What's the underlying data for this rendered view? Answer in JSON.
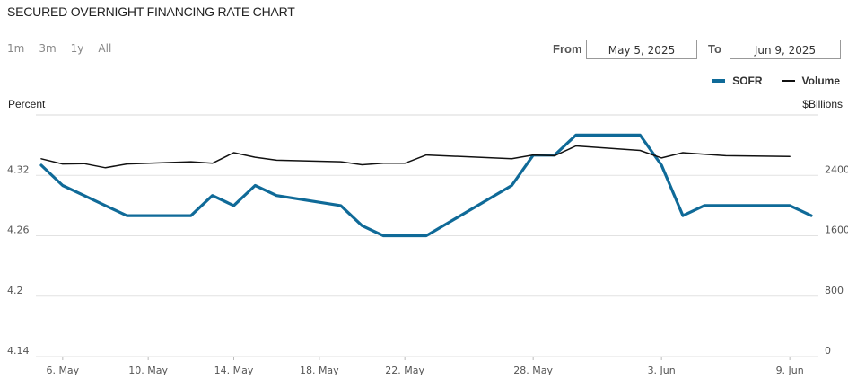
{
  "header": {
    "title": "SECURED OVERNIGHT FINANCING RATE CHART"
  },
  "range_buttons": [
    "1m",
    "3m",
    "1y",
    "All"
  ],
  "date_range": {
    "from_label": "From",
    "from_value": "May 5, 2025",
    "to_label": "To",
    "to_value": "Jun 9, 2025"
  },
  "legend": [
    {
      "name": "SOFR",
      "color": "#0f6a98",
      "icon": "thick-line-swatch"
    },
    {
      "name": "Volume",
      "color": "#111111",
      "icon": "thin-line-swatch"
    }
  ],
  "chart_data": {
    "type": "line",
    "left_axis_title": "Percent",
    "right_axis_title": "$Billions",
    "left_ticks": [
      "4.32",
      "4.26",
      "4.2",
      "4.14"
    ],
    "left_tick_values": [
      4.32,
      4.26,
      4.2,
      4.14
    ],
    "right_ticks": [
      "2400",
      "1600",
      "800",
      "0"
    ],
    "right_tick_values": [
      2400,
      1600,
      800,
      0
    ],
    "ylim_left": [
      4.14,
      4.38
    ],
    "ylim_right": [
      0,
      3200
    ],
    "x_tick_labels": [
      "6. May",
      "10. May",
      "14. May",
      "18. May",
      "22. May",
      "28. May",
      "3. Jun",
      "9. Jun"
    ],
    "x_tick_dates": [
      "2025-05-06",
      "2025-05-10",
      "2025-05-14",
      "2025-05-18",
      "2025-05-22",
      "2025-05-28",
      "2025-06-03",
      "2025-06-09"
    ],
    "xlim": [
      "2025-05-05",
      "2025-06-10"
    ],
    "grid": true,
    "series": [
      {
        "name": "SOFR",
        "axis": "left",
        "color": "#0f6a98",
        "points": [
          [
            "2025-05-05",
            4.33
          ],
          [
            "2025-05-06",
            4.31
          ],
          [
            "2025-05-07",
            4.3
          ],
          [
            "2025-05-08",
            4.29
          ],
          [
            "2025-05-09",
            4.28
          ],
          [
            "2025-05-12",
            4.28
          ],
          [
            "2025-05-13",
            4.3
          ],
          [
            "2025-05-14",
            4.29
          ],
          [
            "2025-05-15",
            4.31
          ],
          [
            "2025-05-16",
            4.3
          ],
          [
            "2025-05-19",
            4.29
          ],
          [
            "2025-05-20",
            4.27
          ],
          [
            "2025-05-21",
            4.26
          ],
          [
            "2025-05-22",
            4.26
          ],
          [
            "2025-05-23",
            4.26
          ],
          [
            "2025-05-27",
            4.31
          ],
          [
            "2025-05-28",
            4.34
          ],
          [
            "2025-05-29",
            4.34
          ],
          [
            "2025-05-30",
            4.36
          ],
          [
            "2025-06-02",
            4.36
          ],
          [
            "2025-06-03",
            4.33
          ],
          [
            "2025-06-04",
            4.28
          ],
          [
            "2025-06-05",
            4.29
          ],
          [
            "2025-06-06",
            4.29
          ],
          [
            "2025-06-09",
            4.29
          ],
          [
            "2025-06-10",
            4.28
          ]
        ]
      },
      {
        "name": "Volume",
        "axis": "right",
        "color": "#111111",
        "points": [
          [
            "2025-05-05",
            2620
          ],
          [
            "2025-05-06",
            2550
          ],
          [
            "2025-05-07",
            2555
          ],
          [
            "2025-05-08",
            2500
          ],
          [
            "2025-05-09",
            2550
          ],
          [
            "2025-05-12",
            2580
          ],
          [
            "2025-05-13",
            2560
          ],
          [
            "2025-05-14",
            2700
          ],
          [
            "2025-05-15",
            2640
          ],
          [
            "2025-05-16",
            2600
          ],
          [
            "2025-05-19",
            2580
          ],
          [
            "2025-05-20",
            2540
          ],
          [
            "2025-05-21",
            2560
          ],
          [
            "2025-05-22",
            2560
          ],
          [
            "2025-05-23",
            2670
          ],
          [
            "2025-05-27",
            2620
          ],
          [
            "2025-05-28",
            2670
          ],
          [
            "2025-05-29",
            2660
          ],
          [
            "2025-05-30",
            2790
          ],
          [
            "2025-06-02",
            2730
          ],
          [
            "2025-06-03",
            2630
          ],
          [
            "2025-06-04",
            2700
          ],
          [
            "2025-06-05",
            2680
          ],
          [
            "2025-06-06",
            2660
          ],
          [
            "2025-06-09",
            2650
          ]
        ]
      }
    ]
  }
}
